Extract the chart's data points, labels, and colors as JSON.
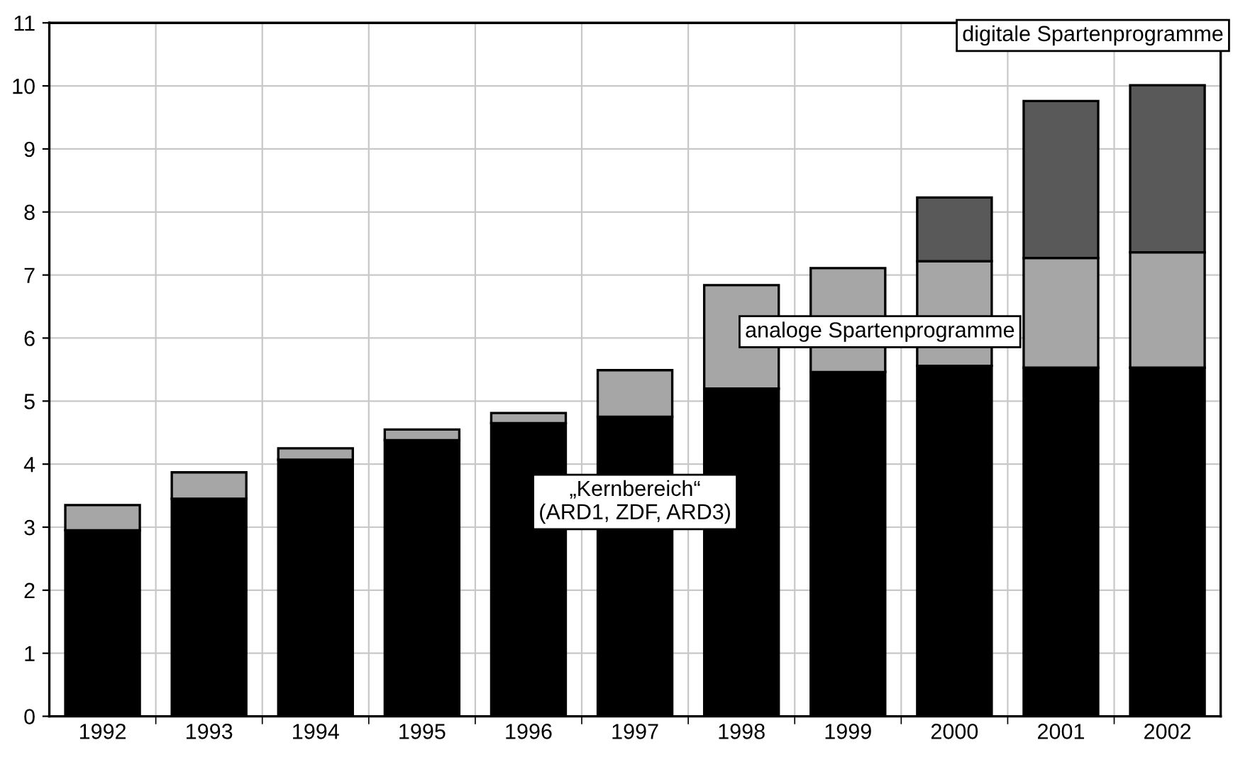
{
  "chart_data": {
    "type": "bar",
    "stacked": true,
    "categories": [
      "1992",
      "1993",
      "1994",
      "1995",
      "1996",
      "1997",
      "1998",
      "1999",
      "2000",
      "2001",
      "2002"
    ],
    "series": [
      {
        "name": "„Kernbereich“\n(ARD1, ZDF, ARD3)",
        "color": "#000000",
        "values": [
          2.95,
          3.45,
          4.07,
          4.38,
          4.65,
          4.75,
          5.2,
          5.46,
          5.56,
          5.53,
          5.53
        ]
      },
      {
        "name": "analoge Spartenprogramme",
        "color": "#a6a6a6",
        "values": [
          0.4,
          0.42,
          0.18,
          0.17,
          0.16,
          0.74,
          1.64,
          1.65,
          1.66,
          1.74,
          1.83
        ]
      },
      {
        "name": "digitale Spartenprogramme",
        "color": "#595959",
        "values": [
          null,
          null,
          null,
          null,
          null,
          null,
          null,
          null,
          1.01,
          2.49,
          2.65
        ]
      }
    ],
    "ylim": [
      0,
      11
    ],
    "yticks": [
      0,
      1,
      2,
      3,
      4,
      5,
      6,
      7,
      8,
      9,
      10,
      11
    ],
    "grid": true
  }
}
